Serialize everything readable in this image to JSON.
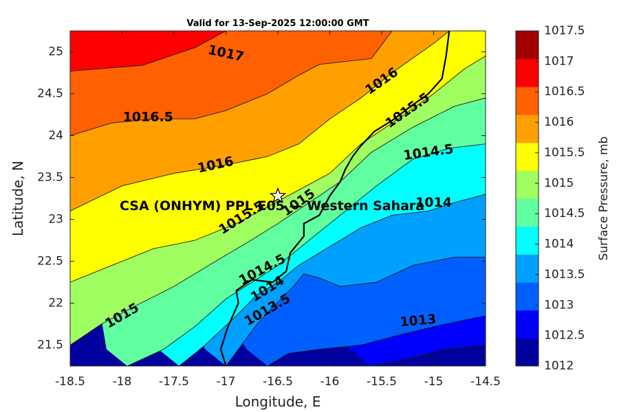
{
  "chart_data": {
    "type": "contour",
    "title": "Valid for 13-Sep-2025 12:00:00 GMT",
    "xlabel": "Longitude, E",
    "ylabel": "Latitude, N",
    "colorbar_label": "Surface Pressure, mb",
    "xlim": [
      -18.5,
      -14.5
    ],
    "ylim": [
      21.25,
      25.25
    ],
    "x_ticks": [
      -18.5,
      -18,
      -17.5,
      -17,
      -16.5,
      -16,
      -15.5,
      -15,
      -14.5
    ],
    "x_tick_labels": [
      "-18.5",
      "-18",
      "-17.5",
      "-17",
      "-16.5",
      "-16",
      "-15.5",
      "-15",
      "-14.5"
    ],
    "y_ticks": [
      21.5,
      22,
      22.5,
      23,
      23.5,
      24,
      24.5,
      25
    ],
    "y_tick_labels": [
      "21.5",
      "22",
      "22.5",
      "23",
      "23.5",
      "24",
      "24.5",
      "25"
    ],
    "levels": [
      1012,
      1012.5,
      1013,
      1013.5,
      1014,
      1014.5,
      1015,
      1015.5,
      1016,
      1016.5,
      1017,
      1017.5
    ],
    "level_labels": [
      "1012",
      "1012.5",
      "1013",
      "1013.5",
      "1014",
      "1014.5",
      "1015",
      "1015.5",
      "1016",
      "1016.5",
      "1017",
      "1017.5"
    ],
    "band_colors": [
      "#00009f",
      "#0000ff",
      "#0060ff",
      "#00a0ff",
      "#00ffff",
      "#60ffa0",
      "#a0ff60",
      "#ffff00",
      "#ffa000",
      "#ff6000",
      "#ff0000",
      "#a00000"
    ],
    "contour_lines": [
      {
        "level": 1017,
        "label": "1017",
        "points": [
          [
            -18.5,
            24.77
          ],
          [
            -17.8,
            24.84
          ],
          [
            -17.3,
            25.05
          ],
          [
            -17.0,
            25.25
          ]
        ]
      },
      {
        "level": 1016.5,
        "label": "1016.5",
        "points": [
          [
            -18.5,
            24.0
          ],
          [
            -18.1,
            24.15
          ],
          [
            -17.7,
            24.2
          ],
          [
            -17.3,
            24.2
          ],
          [
            -17.0,
            24.3
          ],
          [
            -16.6,
            24.5
          ],
          [
            -16.3,
            24.72
          ],
          [
            -16.1,
            24.85
          ],
          [
            -15.6,
            24.92
          ],
          [
            -15.4,
            25.25
          ]
        ]
      },
      {
        "level": 1016,
        "label": "1016",
        "points": [
          [
            -18.5,
            23.1
          ],
          [
            -18.0,
            23.4
          ],
          [
            -17.5,
            23.55
          ],
          [
            -17.0,
            23.65
          ],
          [
            -16.6,
            23.75
          ],
          [
            -16.3,
            23.9
          ],
          [
            -16.0,
            24.2
          ],
          [
            -15.7,
            24.45
          ],
          [
            -15.4,
            24.75
          ],
          [
            -15.0,
            25.1
          ],
          [
            -14.85,
            25.25
          ]
        ]
      },
      {
        "level": 1015.5,
        "label": "1015.5",
        "points": [
          [
            -18.5,
            22.25
          ],
          [
            -18.1,
            22.45
          ],
          [
            -17.7,
            22.65
          ],
          [
            -17.3,
            22.75
          ],
          [
            -16.9,
            22.95
          ],
          [
            -16.6,
            23.15
          ],
          [
            -16.3,
            23.35
          ],
          [
            -16.0,
            23.55
          ],
          [
            -15.7,
            23.9
          ],
          [
            -15.4,
            24.15
          ],
          [
            -15.0,
            24.5
          ],
          [
            -14.7,
            24.8
          ],
          [
            -14.5,
            24.95
          ]
        ]
      },
      {
        "level": 1015,
        "label": "1015",
        "points": [
          [
            -18.5,
            21.5
          ],
          [
            -18.2,
            21.75
          ],
          [
            -17.9,
            21.95
          ],
          [
            -17.5,
            22.2
          ],
          [
            -17.1,
            22.5
          ],
          [
            -16.8,
            22.72
          ],
          [
            -16.5,
            22.95
          ],
          [
            -16.2,
            23.2
          ],
          [
            -15.9,
            23.45
          ],
          [
            -15.6,
            23.8
          ],
          [
            -15.2,
            24.1
          ],
          [
            -14.8,
            24.35
          ],
          [
            -14.5,
            24.45
          ]
        ]
      },
      {
        "level": 1014.5,
        "label": "1014.5",
        "points": [
          [
            -17.95,
            21.25
          ],
          [
            -17.6,
            21.45
          ],
          [
            -17.3,
            21.72
          ],
          [
            -17.0,
            22.05
          ],
          [
            -16.75,
            22.25
          ],
          [
            -16.5,
            22.45
          ],
          [
            -16.3,
            22.65
          ],
          [
            -16.05,
            22.9
          ],
          [
            -15.8,
            23.15
          ],
          [
            -15.55,
            23.4
          ],
          [
            -15.2,
            23.72
          ],
          [
            -14.85,
            23.85
          ],
          [
            -14.5,
            23.9
          ]
        ]
      },
      {
        "level": 1014,
        "label": "1014",
        "points": [
          [
            -17.45,
            21.25
          ],
          [
            -17.2,
            21.5
          ],
          [
            -16.9,
            21.85
          ],
          [
            -16.7,
            22.1
          ],
          [
            -16.5,
            22.25
          ],
          [
            -16.3,
            22.45
          ],
          [
            -16.1,
            22.6
          ],
          [
            -15.9,
            22.75
          ],
          [
            -15.7,
            22.9
          ],
          [
            -15.4,
            23.05
          ],
          [
            -15.05,
            23.1
          ],
          [
            -14.8,
            23.2
          ],
          [
            -14.5,
            23.3
          ]
        ]
      },
      {
        "level": 1013.5,
        "label": "1013.5",
        "points": [
          [
            -17.0,
            21.25
          ],
          [
            -16.85,
            21.5
          ],
          [
            -16.7,
            21.75
          ],
          [
            -16.55,
            21.95
          ],
          [
            -16.35,
            22.2
          ],
          [
            -16.25,
            22.35
          ],
          [
            -16.1,
            22.3
          ],
          [
            -15.9,
            22.2
          ],
          [
            -15.55,
            22.25
          ],
          [
            -15.2,
            22.45
          ],
          [
            -14.8,
            22.55
          ],
          [
            -14.5,
            22.55
          ]
        ]
      },
      {
        "level": 1013,
        "label": "1013",
        "points": [
          [
            -16.6,
            21.25
          ],
          [
            -16.4,
            21.4
          ],
          [
            -16.1,
            21.45
          ],
          [
            -15.7,
            21.5
          ],
          [
            -15.3,
            21.63
          ],
          [
            -15.0,
            21.72
          ],
          [
            -14.7,
            21.8
          ],
          [
            -14.5,
            21.85
          ]
        ]
      },
      {
        "level": 1012.5,
        "label": "",
        "points": [
          [
            -15.6,
            21.25
          ],
          [
            -15.2,
            21.35
          ],
          [
            -14.9,
            21.45
          ],
          [
            -14.5,
            21.5
          ]
        ]
      }
    ],
    "contour_labels": [
      {
        "text": "1017",
        "x": -17.0,
        "y": 24.98,
        "angle": 12
      },
      {
        "text": "1016.5",
        "x": -17.75,
        "y": 24.22,
        "angle": 0
      },
      {
        "text": "1016",
        "x": -17.1,
        "y": 23.65,
        "angle": -12
      },
      {
        "text": "1016",
        "x": -15.5,
        "y": 24.65,
        "angle": -35
      },
      {
        "text": "1015.5",
        "x": -15.25,
        "y": 24.3,
        "angle": -35
      },
      {
        "text": "1015.5",
        "x": -16.85,
        "y": 23.02,
        "angle": -32
      },
      {
        "text": "1015",
        "x": -16.3,
        "y": 23.2,
        "angle": -35
      },
      {
        "text": "1015",
        "x": -18.0,
        "y": 21.85,
        "angle": -30
      },
      {
        "text": "1014.5",
        "x": -15.05,
        "y": 23.8,
        "angle": -8
      },
      {
        "text": "1014.5",
        "x": -16.65,
        "y": 22.4,
        "angle": -28
      },
      {
        "text": "1014",
        "x": -16.6,
        "y": 22.17,
        "angle": -32
      },
      {
        "text": "1014",
        "x": -15.0,
        "y": 23.2,
        "angle": 0
      },
      {
        "text": "1013.5",
        "x": -16.6,
        "y": 21.92,
        "angle": -30
      },
      {
        "text": "1013",
        "x": -15.15,
        "y": 21.79,
        "angle": -5
      }
    ],
    "coastline": [
      [
        -17.0,
        21.25
      ],
      [
        -17.05,
        21.45
      ],
      [
        -16.98,
        21.72
      ],
      [
        -16.88,
        22.0
      ],
      [
        -16.9,
        22.15
      ],
      [
        -16.75,
        22.28
      ],
      [
        -16.55,
        22.25
      ],
      [
        -16.42,
        22.38
      ],
      [
        -16.38,
        22.6
      ],
      [
        -16.25,
        22.8
      ],
      [
        -16.25,
        22.95
      ],
      [
        -16.1,
        23.05
      ],
      [
        -16.0,
        23.28
      ],
      [
        -15.9,
        23.45
      ],
      [
        -15.85,
        23.6
      ],
      [
        -15.78,
        23.75
      ],
      [
        -15.7,
        23.88
      ],
      [
        -15.57,
        24.05
      ],
      [
        -15.4,
        24.18
      ],
      [
        -15.22,
        24.35
      ],
      [
        -15.05,
        24.5
      ],
      [
        -14.92,
        24.68
      ],
      [
        -14.88,
        24.95
      ],
      [
        -14.85,
        25.25
      ]
    ],
    "annotation": {
      "text": "CSA (ONHYM) PPL E05 — Western Sahara",
      "marker": "star",
      "x": -16.5,
      "y": 23.28
    }
  }
}
